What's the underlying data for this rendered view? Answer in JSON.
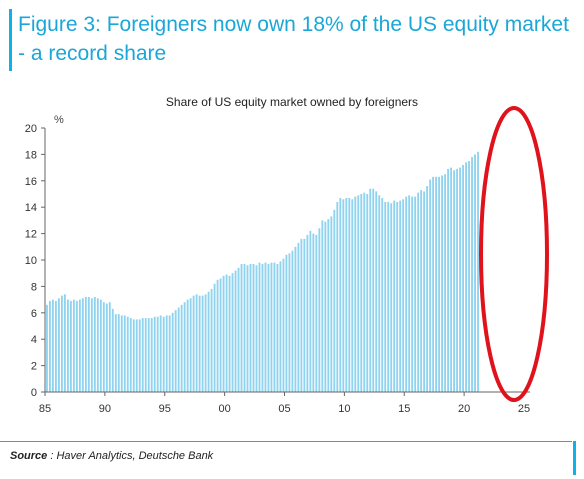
{
  "figure": {
    "title": "Figure 3: Foreigners now own 18% of the US equity market - a record share",
    "source_prefix": "Source",
    "source_text": " : Haver Analytics, Deutsche Bank"
  },
  "colors": {
    "bar": "#8fd3ef",
    "title": "#1aa7d8",
    "accent": "#0db3e8",
    "highlight_ellipse": "#e0121c"
  },
  "chart_data": {
    "type": "bar",
    "title": "Share of US equity market owned by foreigners",
    "ylabel": "%",
    "xlabel": "",
    "ylim": [
      0,
      20
    ],
    "yticks": [
      "0",
      "2",
      "4",
      "6",
      "8",
      "10",
      "12",
      "14",
      "16",
      "18",
      "20"
    ],
    "xtick_labels": [
      "85",
      "90",
      "95",
      "00",
      "05",
      "10",
      "15",
      "20",
      "25"
    ],
    "xtick_years": [
      1985,
      1990,
      1995,
      2000,
      2005,
      2010,
      2015,
      2020,
      2025
    ],
    "x_start_year": 1985,
    "frequency": "quarterly",
    "grid": false,
    "annotation": "red ellipse highlighting 2022-2024 record share",
    "series": [
      {
        "values": [
          6.6,
          6.9,
          7.0,
          6.9,
          7.1,
          7.3,
          7.4,
          7.0,
          6.9,
          7.0,
          6.9,
          7.0,
          7.1,
          7.2,
          7.2,
          7.1,
          7.2,
          7.1,
          7.0,
          6.8,
          6.7,
          6.8,
          6.3,
          5.9,
          5.9,
          5.8,
          5.8,
          5.7,
          5.6,
          5.5,
          5.5,
          5.5,
          5.6,
          5.6,
          5.6,
          5.6,
          5.7,
          5.7,
          5.8,
          5.7,
          5.8,
          5.8,
          6.0,
          6.2,
          6.4,
          6.6,
          6.8,
          7.0,
          7.1,
          7.3,
          7.4,
          7.3,
          7.3,
          7.4,
          7.6,
          7.8,
          8.2,
          8.5,
          8.6,
          8.8,
          8.9,
          8.8,
          9.0,
          9.2,
          9.4,
          9.7,
          9.7,
          9.6,
          9.7,
          9.7,
          9.6,
          9.8,
          9.7,
          9.8,
          9.7,
          9.8,
          9.8,
          9.7,
          9.9,
          10.1,
          10.4,
          10.5,
          10.7,
          11.0,
          11.3,
          11.6,
          11.6,
          11.9,
          12.2,
          12.0,
          11.9,
          12.4,
          13.0,
          12.9,
          13.1,
          13.3,
          13.8,
          14.4,
          14.7,
          14.6,
          14.7,
          14.7,
          14.6,
          14.8,
          14.9,
          15.0,
          15.1,
          15.0,
          15.4,
          15.4,
          15.2,
          14.9,
          14.7,
          14.4,
          14.4,
          14.3,
          14.5,
          14.4,
          14.5,
          14.6,
          14.8,
          14.9,
          14.8,
          14.8,
          15.1,
          15.3,
          15.2,
          15.6,
          16.1,
          16.3,
          16.3,
          16.3,
          16.4,
          16.5,
          16.9,
          17.0,
          16.8,
          16.9,
          17.0,
          17.2,
          17.4,
          17.5,
          17.8,
          18.0,
          18.2
        ]
      }
    ]
  }
}
